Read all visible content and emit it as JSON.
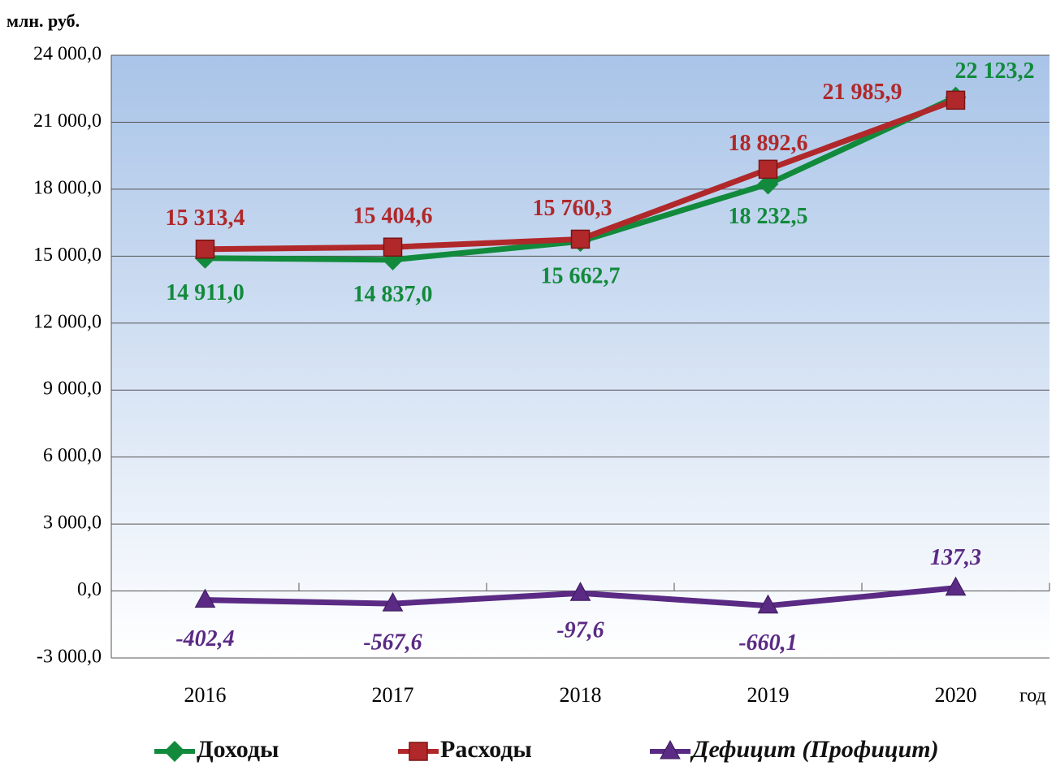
{
  "chart_data": {
    "type": "line",
    "y_label": "млн. руб.",
    "x_label": "год",
    "categories": [
      "2016",
      "2017",
      "2018",
      "2019",
      "2020"
    ],
    "ylim": [
      -3000,
      24000
    ],
    "yticks": [
      {
        "value": -3000,
        "label": "-3 000,0"
      },
      {
        "value": 0,
        "label": "0,0"
      },
      {
        "value": 3000,
        "label": "3 000,0"
      },
      {
        "value": 6000,
        "label": "6 000,0"
      },
      {
        "value": 9000,
        "label": "9 000,0"
      },
      {
        "value": 12000,
        "label": "12 000,0"
      },
      {
        "value": 15000,
        "label": "15 000,0"
      },
      {
        "value": 18000,
        "label": "18 000,0"
      },
      {
        "value": 21000,
        "label": "21 000,0"
      },
      {
        "value": 24000,
        "label": "24 000,0"
      }
    ],
    "grid": true,
    "legend": "bottom",
    "series": [
      {
        "name": "Доходы",
        "color": "#128a3c",
        "marker": "diamond",
        "values": [
          14911.0,
          14837.0,
          15662.7,
          18232.5,
          22123.2
        ],
        "value_labels": [
          "14 911,0",
          "14 837,0",
          "15 662,7",
          "18 232,5",
          "22 123,2"
        ]
      },
      {
        "name": "Расходы",
        "color": "#b0282a",
        "marker": "square",
        "values": [
          15313.4,
          15404.6,
          15760.3,
          18892.6,
          21985.9
        ],
        "value_labels": [
          "15 313,4",
          "15 404,6",
          "15 760,3",
          "18 892,6",
          "21 985,9"
        ]
      },
      {
        "name": "Дефицит (Профицит)",
        "color": "#5a2a84",
        "marker": "triangle",
        "values": [
          -402.4,
          -567.6,
          -97.6,
          -660.1,
          137.3
        ],
        "value_labels": [
          "-402,4",
          "-567,6",
          "-97,6",
          "-660,1",
          "137,3"
        ]
      }
    ]
  }
}
